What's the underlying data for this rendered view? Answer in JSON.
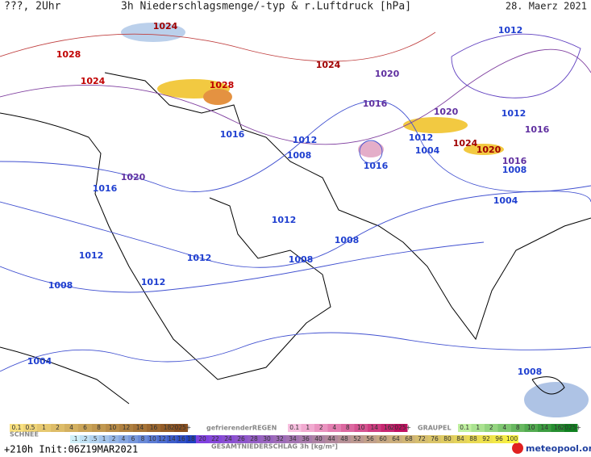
{
  "header": {
    "left": "???, 2Uhr",
    "title": "3h Niederschlagsmenge/-typ & r.Luftdruck [hPa]",
    "date": "28. Maerz 2021"
  },
  "isobar_labels": [
    {
      "value": 1024,
      "color": "#a00000"
    },
    {
      "value": 1028,
      "color": "#c00000"
    },
    {
      "value": 1024,
      "color": "#c00000"
    },
    {
      "value": 1024,
      "color": "#a00000"
    },
    {
      "value": 1028,
      "color": "#c00000"
    },
    {
      "value": 1020,
      "color": "#6030a0"
    },
    {
      "value": 1012,
      "color": "#2040d0"
    },
    {
      "value": 1016,
      "color": "#6030a0"
    },
    {
      "value": 1020,
      "color": "#6030a0"
    },
    {
      "value": 1012,
      "color": "#2040d0"
    },
    {
      "value": 1016,
      "color": "#2040d0"
    },
    {
      "value": 1012,
      "color": "#2040d0"
    },
    {
      "value": 1008,
      "color": "#2040d0"
    },
    {
      "value": 1012,
      "color": "#2040d0"
    },
    {
      "value": 1004,
      "color": "#2040d0"
    },
    {
      "value": 1016,
      "color": "#6030a0"
    },
    {
      "value": 1024,
      "color": "#a00000"
    },
    {
      "value": 1020,
      "color": "#a00000"
    },
    {
      "value": 1016,
      "color": "#6030a0"
    },
    {
      "value": 1008,
      "color": "#2040d0"
    },
    {
      "value": 1016,
      "color": "#2040d0"
    },
    {
      "value": 1020,
      "color": "#6030a0"
    },
    {
      "value": 1016,
      "color": "#2040d0"
    },
    {
      "value": 1004,
      "color": "#2040d0"
    },
    {
      "value": 1012,
      "color": "#2040d0"
    },
    {
      "value": 1008,
      "color": "#2040d0"
    },
    {
      "value": 1012,
      "color": "#2040d0"
    },
    {
      "value": 1012,
      "color": "#2040d0"
    },
    {
      "value": 1008,
      "color": "#2040d0"
    },
    {
      "value": 1008,
      "color": "#2040d0"
    },
    {
      "value": 1012,
      "color": "#2040d0"
    },
    {
      "value": 1004,
      "color": "#2040d0"
    },
    {
      "value": 1008,
      "color": "#2040d0"
    }
  ],
  "legend": {
    "rain": {
      "values": [
        "0.1",
        "0.5",
        "1",
        "2",
        "4",
        "6",
        "8",
        "10",
        "12",
        "14",
        "16",
        "18",
        "2025+"
      ]
    },
    "freezing_rain": {
      "title": "gefrierenderREGEN",
      "values": [
        "0.1",
        "1",
        "2",
        "4",
        "8",
        "10",
        "14",
        "16",
        "2025+"
      ]
    },
    "graupel": {
      "title": "GRAUPEL",
      "values": [
        "0.1",
        "1",
        "2",
        "4",
        "8",
        "10",
        "14",
        "16",
        "2025+"
      ]
    },
    "snow": {
      "title": "SCHNEE",
      "values": [
        ".1",
        ".2",
        ".5",
        "1",
        "2",
        "4",
        "6",
        "8",
        "10",
        "12",
        "14",
        "16",
        "18"
      ]
    },
    "total": {
      "title": "GESAMTNIEDERSCHLAG 3h [kg/m²]",
      "values": [
        "20",
        "22",
        "24",
        "26",
        "28",
        "30",
        "32",
        "34",
        "36",
        "40",
        "44",
        "48",
        "52",
        "56",
        "60",
        "64",
        "68",
        "72",
        "76",
        "80",
        "84",
        "88",
        "92",
        "96",
        "100"
      ]
    }
  },
  "footer": {
    "run": "+210h Init:06Z19MAR2021",
    "brand": "meteopool.org"
  }
}
